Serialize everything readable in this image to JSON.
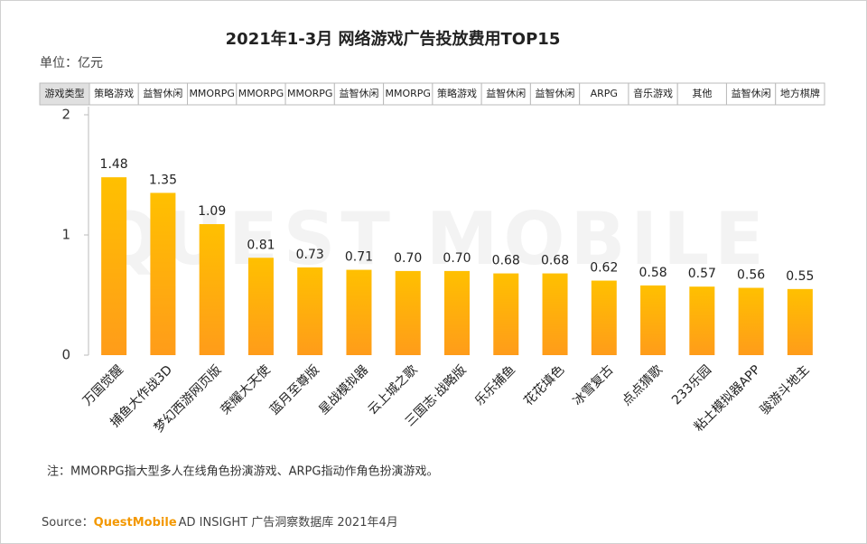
{
  "chart_data": {
    "type": "bar",
    "title": "2021年1-3月 网络游戏广告投放费用TOP15",
    "unit": "单位：亿元",
    "type_header": "游戏类型",
    "game_types": [
      "策略游戏",
      "益智休闲",
      "MMORPG",
      "MMORPG",
      "MMORPG",
      "益智休闲",
      "MMORPG",
      "策略游戏",
      "益智休闲",
      "益智休闲",
      "ARPG",
      "音乐游戏",
      "其他",
      "益智休闲",
      "地方棋牌"
    ],
    "categories": [
      "万国觉醒",
      "捕鱼大作战3D",
      "梦幻西游网页版",
      "荣耀大天使",
      "蓝月至尊版",
      "星战模拟器",
      "云上城之歌",
      "三国志·战略版",
      "乐乐捕鱼",
      "花花填色",
      "冰雪复古",
      "点点猜歌",
      "233乐园",
      "粘土模拟器APP",
      "骏游斗地主"
    ],
    "values": [
      1.48,
      1.35,
      1.09,
      0.81,
      0.73,
      0.71,
      0.7,
      0.7,
      0.68,
      0.68,
      0.62,
      0.58,
      0.57,
      0.56,
      0.55
    ],
    "value_labels": [
      "1.48",
      "1.35",
      "1.09",
      "0.81",
      "0.73",
      "0.71",
      "0.70",
      "0.70",
      "0.68",
      "0.68",
      "0.62",
      "0.58",
      "0.57",
      "0.56",
      "0.55"
    ],
    "color": "#ffc000",
    "ylim": [
      0,
      2
    ],
    "yticks": [
      0,
      1,
      2
    ],
    "note": "注：MMORPG指大型多人在线角色扮演游戏、ARPG指动作角色扮演游戏。",
    "source_prefix": "Source：",
    "source_brand": "QuestMobile",
    "source_rest": "AD INSIGHT 广告洞察数据库 2021年4月",
    "watermark": "QUEST MOBILE"
  }
}
